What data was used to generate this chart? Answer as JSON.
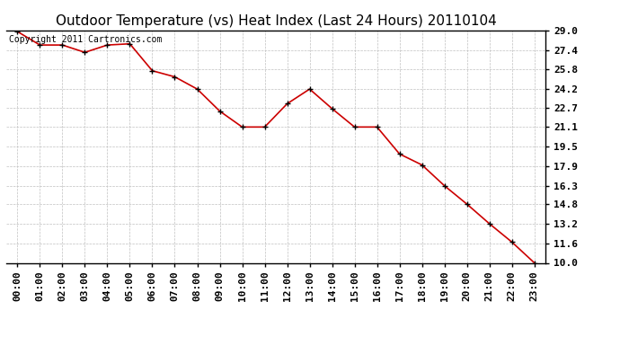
{
  "title": "Outdoor Temperature (vs) Heat Index (Last 24 Hours) 20110104",
  "copyright_text": "Copyright 2011 Cartronics.com",
  "x_labels": [
    "00:00",
    "01:00",
    "02:00",
    "03:00",
    "04:00",
    "05:00",
    "06:00",
    "07:00",
    "08:00",
    "09:00",
    "10:00",
    "11:00",
    "12:00",
    "13:00",
    "14:00",
    "15:00",
    "16:00",
    "17:00",
    "18:00",
    "19:00",
    "20:00",
    "21:00",
    "22:00",
    "23:00"
  ],
  "y_vals": [
    28.9,
    27.8,
    27.8,
    27.2,
    27.8,
    27.9,
    25.7,
    25.2,
    24.2,
    22.4,
    21.1,
    21.1,
    23.0,
    24.2,
    22.6,
    21.1,
    21.1,
    18.9,
    18.0,
    16.3,
    14.8,
    13.2,
    11.7,
    10.0
  ],
  "line_color": "#cc0000",
  "marker_color": "#000000",
  "background_color": "#ffffff",
  "grid_color": "#c0c0c0",
  "ylim_min": 10.0,
  "ylim_max": 29.0,
  "y_ticks": [
    10.0,
    11.6,
    13.2,
    14.8,
    16.3,
    17.9,
    19.5,
    21.1,
    22.7,
    24.2,
    25.8,
    27.4,
    29.0
  ],
  "title_fontsize": 11,
  "tick_fontsize": 8,
  "copyright_fontsize": 7
}
